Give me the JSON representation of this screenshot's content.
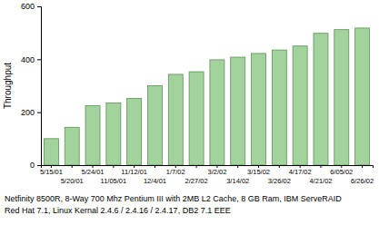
{
  "chart_data": {
    "type": "bar",
    "y_label": "Throughput",
    "categories": [
      "5/15/01",
      "5/20/01",
      "5/24/01",
      "11/05/01",
      "11/12/01",
      "12/4/01",
      "1/7/02",
      "2/27/02",
      "3/2/02",
      "3/14/02",
      "3/15/02",
      "3/26/02",
      "4/17/02",
      "4/21/02",
      "6/05/02",
      "6/26/02"
    ],
    "values": [
      100,
      143,
      225,
      235,
      252,
      300,
      343,
      353,
      398,
      408,
      422,
      435,
      450,
      498,
      512,
      518
    ],
    "color": "#a3d39c",
    "ylim": [
      0,
      600
    ],
    "yticks": [
      0,
      200,
      400,
      600
    ],
    "grid": false,
    "annotations": [
      "Netfinity 8500R, 8-Way 700 Mhz Pentium III with 2MB L2 Cache, 8 GB Ram, IBM ServeRAID",
      "Red Hat 7.1, Linux Kernal 2.4.6 / 2.4.16 / 2.4.17, DB2 7.1 EEE"
    ]
  }
}
